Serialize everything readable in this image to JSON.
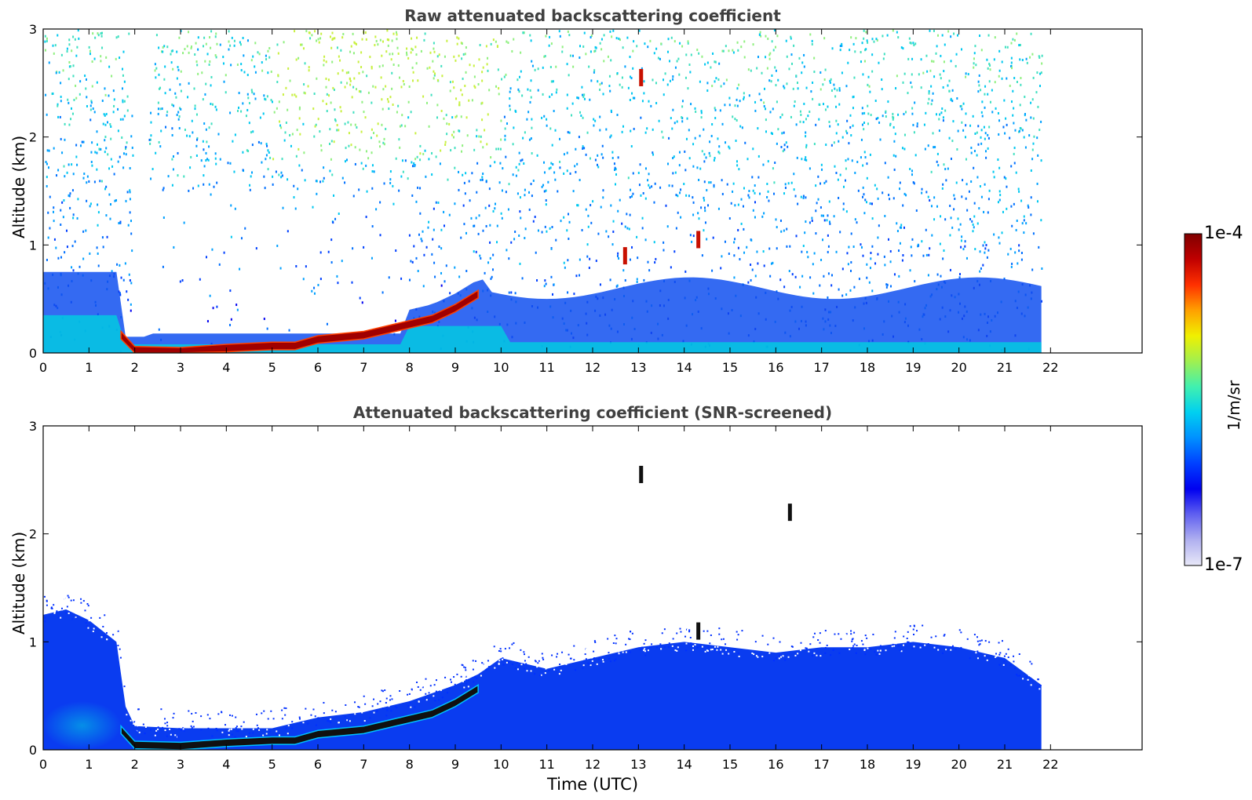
{
  "chart_data": [
    {
      "type": "heatmap",
      "title": "Raw attenuated backscattering coefficient",
      "xlabel": "",
      "ylabel": "Altitude (km)",
      "xlim": [
        0,
        24
      ],
      "ylim": [
        0,
        3
      ],
      "x_ticks": [
        "0",
        "1",
        "2",
        "3",
        "4",
        "5",
        "6",
        "7",
        "8",
        "9",
        "10",
        "11",
        "12",
        "13",
        "14",
        "15",
        "16",
        "17",
        "18",
        "19",
        "20",
        "21",
        "22"
      ],
      "y_ticks": [
        "0",
        "1",
        "2",
        "3"
      ],
      "data_time_range": [
        0,
        21.8
      ],
      "layer_top_profile": [
        [
          1.7,
          0.2
        ],
        [
          2.0,
          0.06
        ],
        [
          3.0,
          0.05
        ],
        [
          4.0,
          0.08
        ],
        [
          5.0,
          0.1
        ],
        [
          5.5,
          0.1
        ],
        [
          6.0,
          0.16
        ],
        [
          7.0,
          0.2
        ],
        [
          8.0,
          0.3
        ],
        [
          8.5,
          0.35
        ],
        [
          9.0,
          0.45
        ],
        [
          9.5,
          0.58
        ]
      ],
      "noise_gap": [
        1.95,
        2.3
      ],
      "features": [
        {
          "time": 12.7,
          "altitude": 0.9,
          "kind": "cloud"
        },
        {
          "time": 13.05,
          "altitude": 2.55,
          "kind": "cloud"
        },
        {
          "time": 14.3,
          "altitude": 1.05,
          "kind": "cloud"
        }
      ]
    },
    {
      "type": "heatmap",
      "title": "Attenuated backscattering coefficient (SNR-screened)",
      "xlabel": "Time (UTC)",
      "ylabel": "Altitude (km)",
      "xlim": [
        0,
        24
      ],
      "ylim": [
        0,
        3
      ],
      "x_ticks": [
        "0",
        "1",
        "2",
        "3",
        "4",
        "5",
        "6",
        "7",
        "8",
        "9",
        "10",
        "11",
        "12",
        "13",
        "14",
        "15",
        "16",
        "17",
        "18",
        "19",
        "20",
        "21",
        "22"
      ],
      "y_ticks": [
        "0",
        "1",
        "2",
        "3"
      ],
      "data_time_range": [
        0,
        21.8
      ],
      "boundary_layer_top": [
        [
          0,
          1.25
        ],
        [
          0.5,
          1.3
        ],
        [
          1.0,
          1.2
        ],
        [
          1.6,
          1.0
        ],
        [
          1.8,
          0.4
        ],
        [
          2.0,
          0.22
        ],
        [
          3.0,
          0.2
        ],
        [
          5.0,
          0.2
        ],
        [
          6.0,
          0.3
        ],
        [
          7.0,
          0.35
        ],
        [
          8.0,
          0.45
        ],
        [
          9.0,
          0.6
        ],
        [
          9.5,
          0.7
        ],
        [
          10.0,
          0.85
        ],
        [
          11.0,
          0.75
        ],
        [
          12.0,
          0.85
        ],
        [
          13.0,
          0.95
        ],
        [
          14.0,
          1.0
        ],
        [
          15.0,
          0.95
        ],
        [
          16.0,
          0.9
        ],
        [
          17.0,
          0.95
        ],
        [
          18.0,
          0.95
        ],
        [
          19.0,
          1.0
        ],
        [
          20.0,
          0.95
        ],
        [
          21.0,
          0.85
        ],
        [
          21.8,
          0.6
        ]
      ],
      "features": [
        {
          "time": 13.05,
          "altitude": 2.55,
          "kind": "cloud"
        },
        {
          "time": 16.3,
          "altitude": 2.2,
          "kind": "cloud"
        },
        {
          "time": 14.3,
          "altitude": 1.1,
          "kind": "cloud"
        }
      ]
    }
  ],
  "colorbar": {
    "label": "1/m/sr",
    "max_label": "1e-4",
    "min_label": "1e-7",
    "colors": [
      "#e8e8f8",
      "#b0b0f0",
      "#6060f0",
      "#0000f0",
      "#0040ff",
      "#0090ff",
      "#00d0f0",
      "#40f0b0",
      "#a0f050",
      "#f0f000",
      "#ffa000",
      "#ff3000",
      "#c00000",
      "#800000"
    ]
  }
}
